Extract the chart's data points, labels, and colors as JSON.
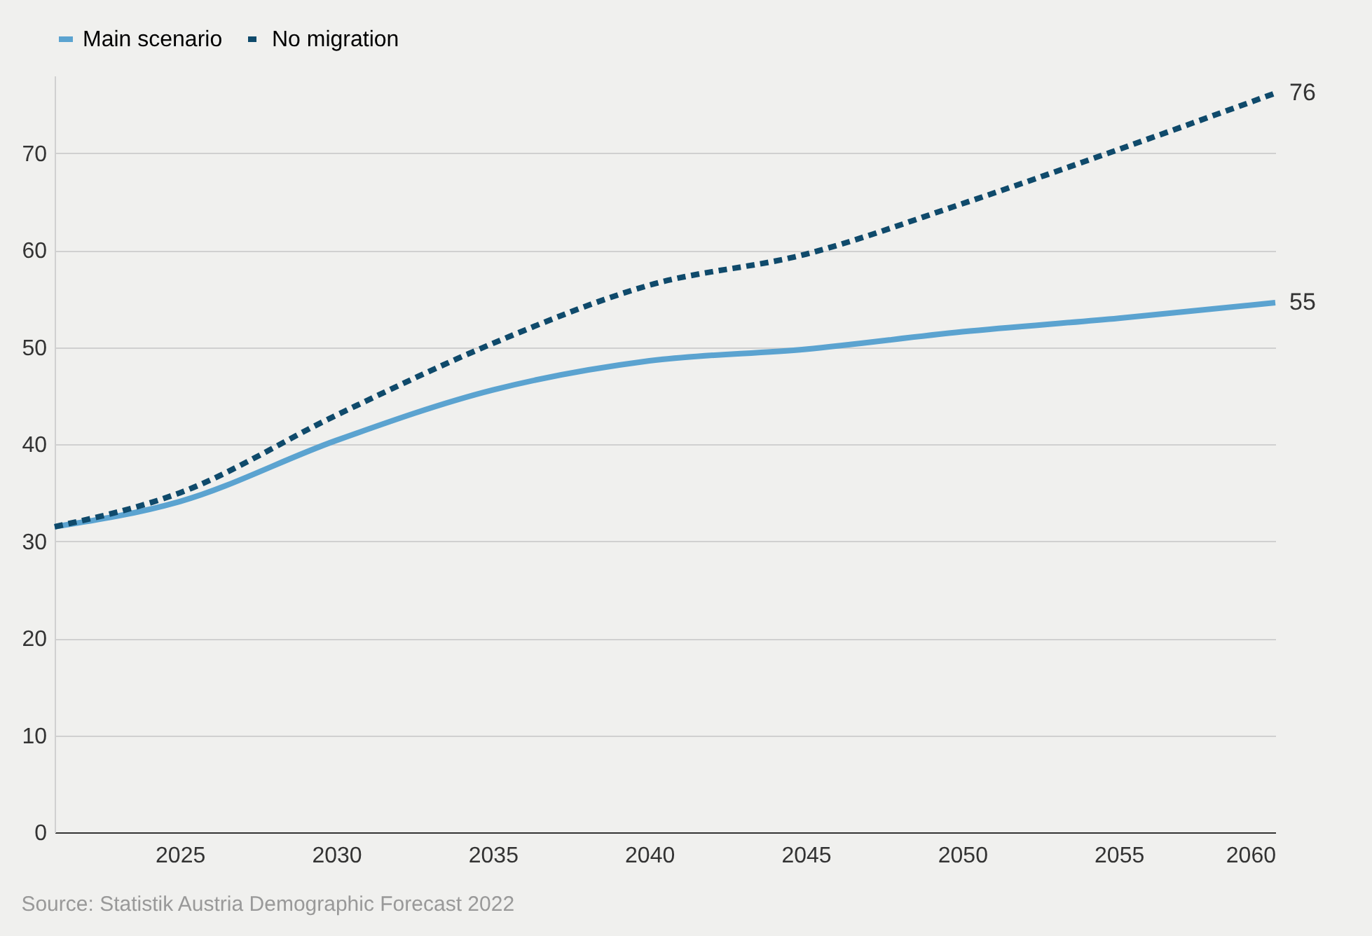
{
  "chart_data": {
    "type": "line",
    "x": [
      2021,
      2025,
      2030,
      2035,
      2040,
      2045,
      2050,
      2055,
      2060
    ],
    "series": [
      {
        "name": "Main scenario",
        "color": "#5ba3d0",
        "line_style": "solid",
        "values": [
          31.5,
          34.1,
          40.4,
          45.6,
          48.6,
          49.8,
          51.6,
          53.0,
          54.6
        ],
        "value_labels": [
          null,
          null,
          null,
          null,
          null,
          null,
          null,
          null,
          "55"
        ]
      },
      {
        "name": "No migration",
        "color": "#0f4a6b",
        "line_style": "dashed",
        "values": [
          31.5,
          35.0,
          43.0,
          50.4,
          56.4,
          59.6,
          64.8,
          70.4,
          76.2
        ],
        "value_labels": [
          null,
          null,
          null,
          null,
          null,
          null,
          null,
          null,
          "76"
        ]
      }
    ],
    "xlim": [
      2021,
      2060
    ],
    "xticks": [
      2025,
      2030,
      2035,
      2040,
      2045,
      2050,
      2055,
      2060
    ],
    "ylim": [
      0,
      78
    ],
    "yticks": [
      0,
      10,
      20,
      30,
      40,
      50,
      60,
      70
    ],
    "grid": "y",
    "legend": "top",
    "marker": "none",
    "annotations": [
      "Source: Statistik Austria Demographic Forecast 2022"
    ]
  }
}
